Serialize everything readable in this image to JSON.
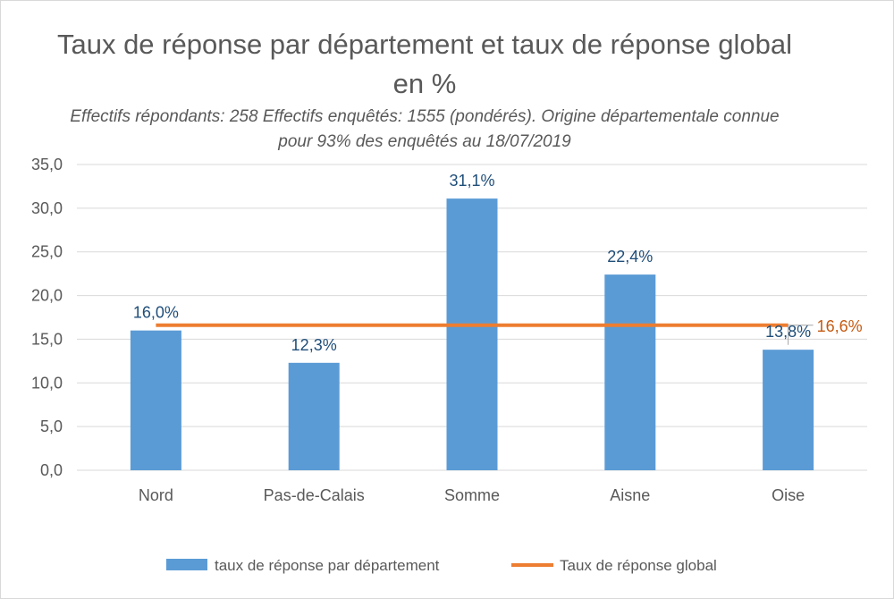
{
  "chart_data": {
    "type": "bar",
    "title": "Taux de réponse par département et taux de réponse global en %",
    "subtitle": "Effectifs répondants: 258  Effectifs enquêtés: 1555 (pondérés). Origine départementale connue pour 93% des enquêtés au 18/07/2019",
    "categories": [
      "Nord",
      "Pas-de-Calais",
      "Somme",
      "Aisne",
      "Oise"
    ],
    "series": [
      {
        "name": "taux de réponse par département",
        "type": "bar",
        "values": [
          16.0,
          12.3,
          31.1,
          22.4,
          13.8
        ],
        "labels": [
          "16,0%",
          "12,3%",
          "31,1%",
          "22,4%",
          "13,8%"
        ],
        "color": "#5b9bd5"
      },
      {
        "name": "Taux de réponse global",
        "type": "line",
        "value": 16.6,
        "label": "16,6%",
        "color": "#ed7d31"
      }
    ],
    "ylim": [
      0,
      35
    ],
    "yticks": [
      0,
      5,
      10,
      15,
      20,
      25,
      30,
      35
    ],
    "ytick_labels": [
      "0,0",
      "5,0",
      "10,0",
      "15,0",
      "20,0",
      "25,0",
      "30,0",
      "35,0"
    ],
    "grid": true,
    "legend_position": "bottom"
  }
}
